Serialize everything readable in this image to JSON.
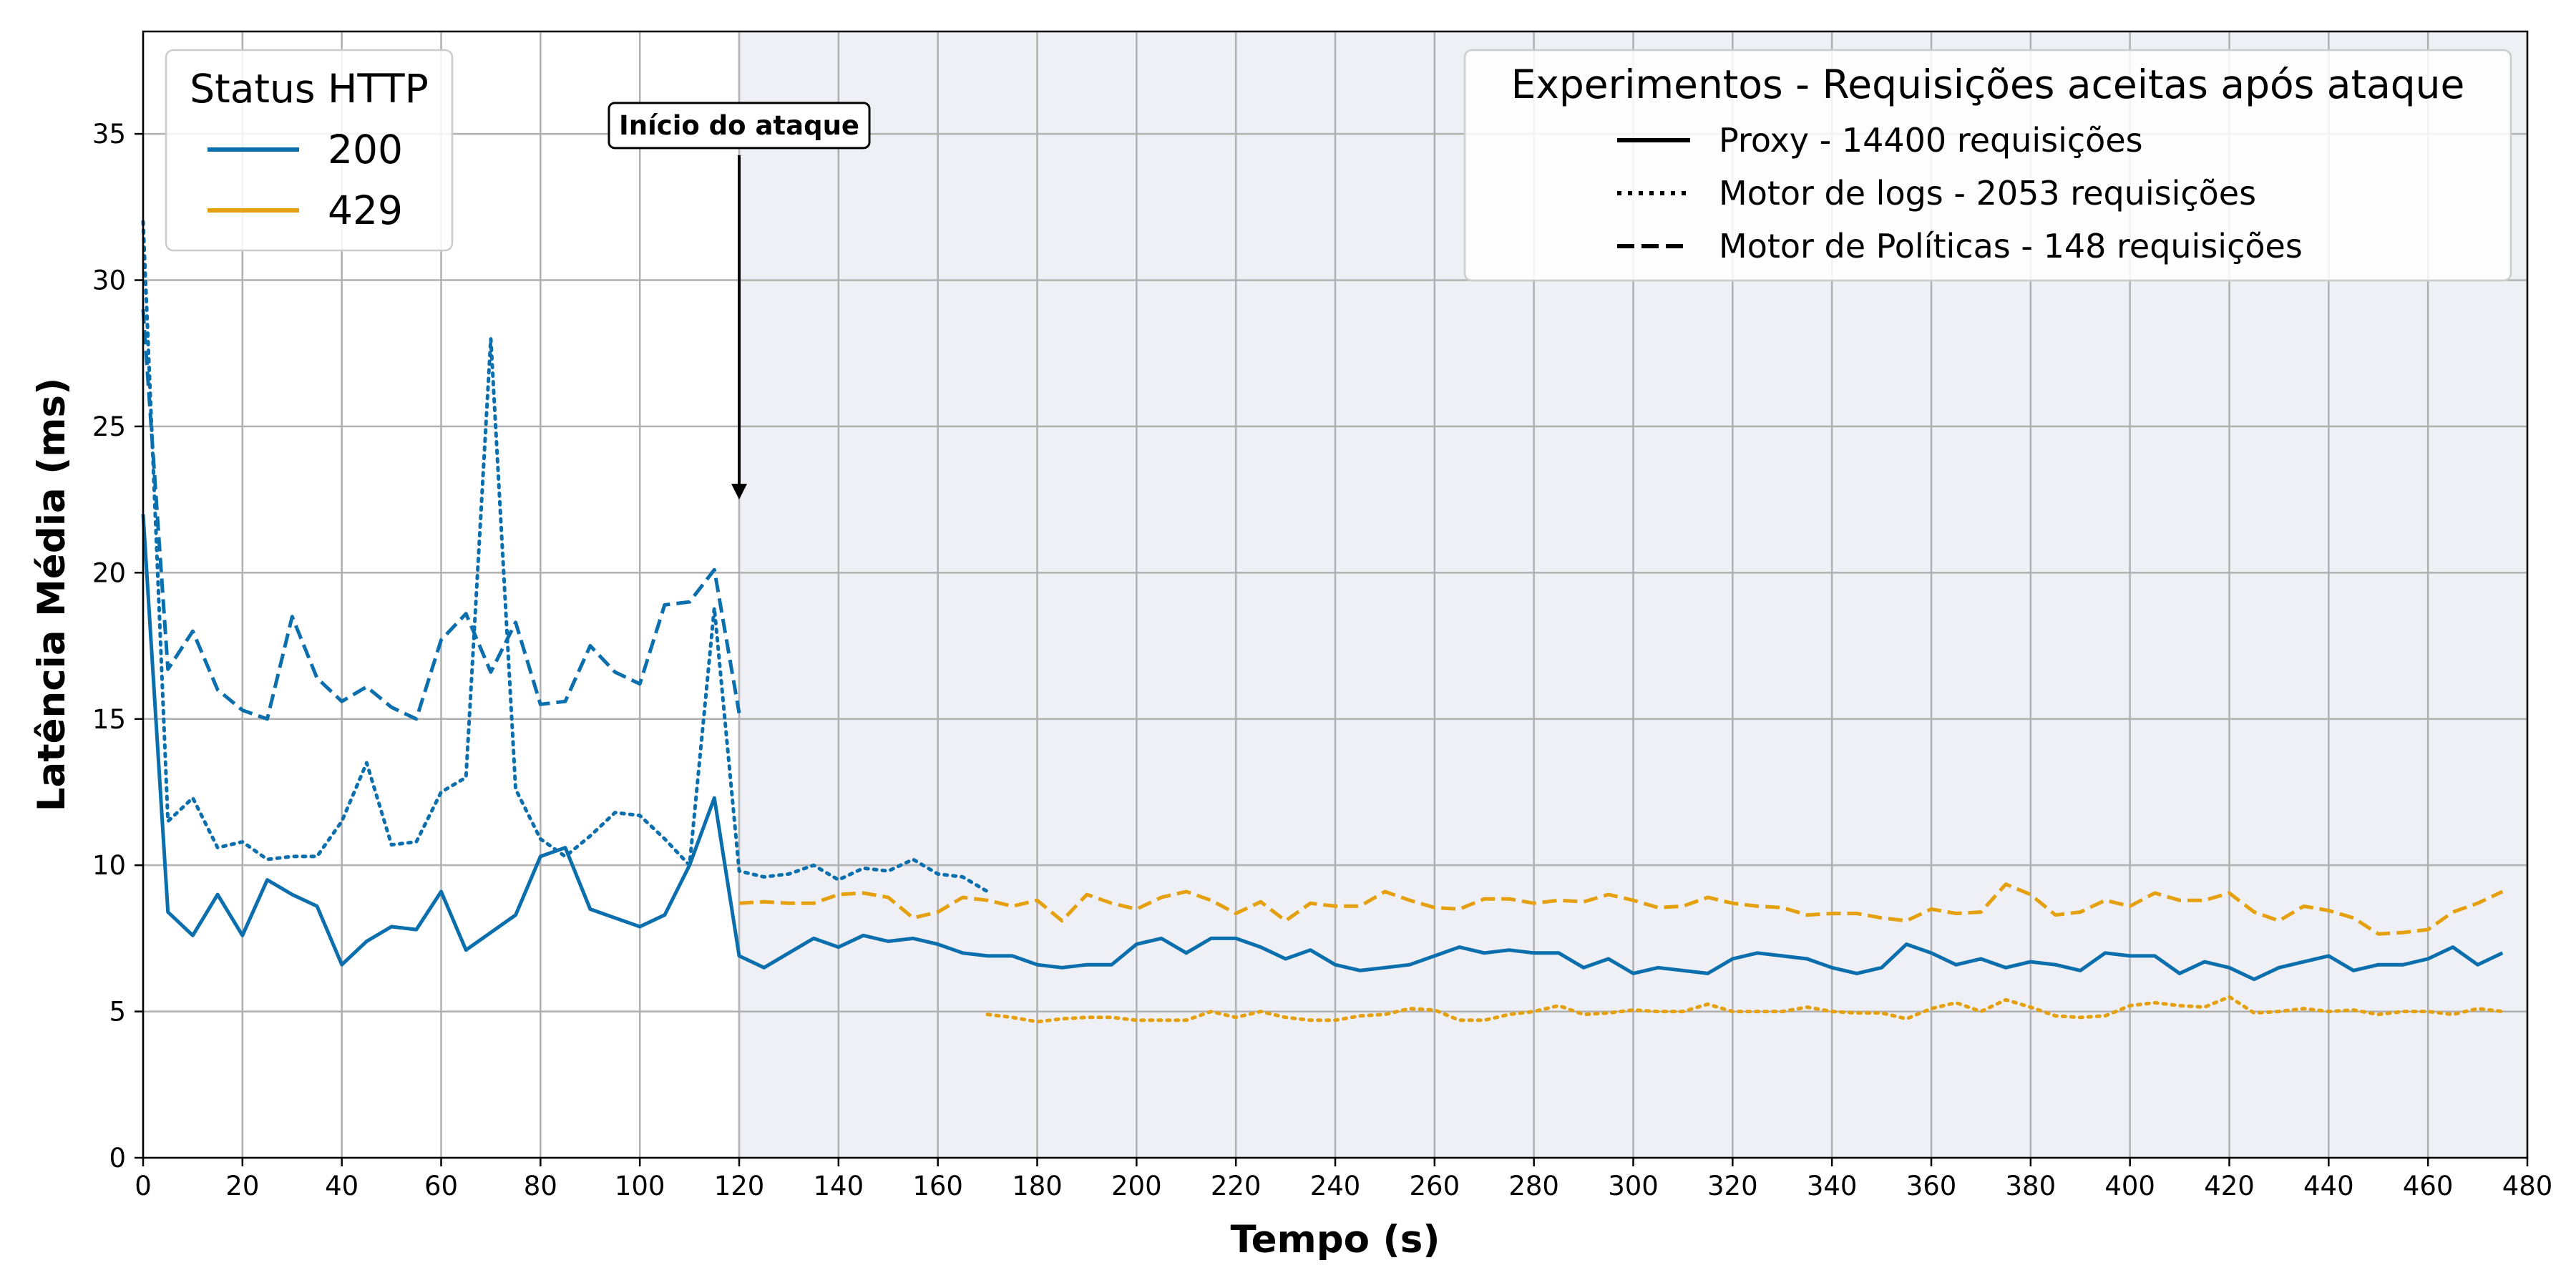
{
  "chart_data": {
    "type": "line",
    "xlabel": "Tempo (s)",
    "ylabel": "Latência Média (ms)",
    "xlim": [
      0,
      480
    ],
    "ylim": [
      0,
      38.5
    ],
    "x_ticks": [
      0,
      20,
      40,
      60,
      80,
      100,
      120,
      140,
      160,
      180,
      200,
      220,
      240,
      260,
      280,
      300,
      320,
      340,
      360,
      380,
      400,
      420,
      440,
      460,
      480
    ],
    "y_ticks": [
      0,
      5,
      10,
      15,
      20,
      25,
      30,
      35
    ],
    "grid": true,
    "shaded_region": {
      "x_start": 120,
      "x_end": 480,
      "color": "#eef0f5"
    },
    "annotation": {
      "text": "Início do ataque",
      "x": 120,
      "y_text": 35.3,
      "y_arrow_tip": 22.5
    },
    "status_legend": {
      "title": "Status HTTP",
      "placement": "upper-left",
      "entries": [
        {
          "label": "200",
          "color": "#0c6fad"
        },
        {
          "label": "429",
          "color": "#e5a00f"
        }
      ]
    },
    "experiment_legend": {
      "title": "Experimentos - Requisições aceitas após ataque",
      "placement": "upper-right",
      "entries": [
        {
          "label": "Proxy - 14400 requisições",
          "style": "solid"
        },
        {
          "label": "Motor de logs - 2053 requisições",
          "style": "dotted"
        },
        {
          "label": "Motor de Políticas - 148 requisições",
          "style": "dashed"
        }
      ]
    },
    "series": [
      {
        "experiment": "Proxy",
        "status": "200",
        "color": "#0c6fad",
        "style": "solid",
        "x": [
          0,
          5,
          10,
          15,
          20,
          25,
          30,
          35,
          40,
          45,
          50,
          55,
          60,
          65,
          70,
          75,
          80,
          85,
          90,
          95,
          100,
          105,
          110,
          115,
          120,
          125,
          130,
          135,
          140,
          145,
          150,
          155,
          160,
          165,
          170,
          175,
          180,
          185,
          190,
          195,
          200,
          205,
          210,
          215,
          220,
          225,
          230,
          235,
          240,
          245,
          250,
          255,
          260,
          265,
          270,
          275,
          280,
          285,
          290,
          295,
          300,
          305,
          310,
          315,
          320,
          325,
          330,
          335,
          340,
          345,
          350,
          355,
          360,
          365,
          370,
          375,
          380,
          385,
          390,
          395,
          400,
          405,
          410,
          415,
          420,
          425,
          430,
          435,
          440,
          445,
          450,
          455,
          460,
          465,
          470,
          475
        ],
        "y": [
          22.0,
          8.4,
          7.6,
          9.0,
          7.6,
          9.5,
          9.0,
          8.6,
          6.6,
          7.4,
          7.9,
          7.8,
          9.1,
          7.1,
          7.7,
          8.3,
          10.3,
          10.6,
          8.5,
          8.2,
          7.9,
          8.3,
          10.0,
          12.3,
          6.9,
          6.5,
          7.0,
          7.5,
          7.2,
          7.6,
          7.4,
          7.5,
          7.3,
          7.0,
          6.9,
          6.9,
          6.6,
          6.5,
          6.6,
          6.6,
          7.3,
          7.5,
          7.0,
          7.5,
          7.5,
          7.2,
          6.8,
          7.1,
          6.6,
          6.4,
          6.5,
          6.6,
          6.9,
          7.2,
          7.0,
          7.1,
          7.0,
          7.0,
          6.5,
          6.8,
          6.3,
          6.5,
          6.4,
          6.3,
          6.8,
          7.0,
          6.9,
          6.8,
          6.5,
          6.3,
          6.5,
          7.3,
          7.0,
          6.6,
          6.8,
          6.5,
          6.7,
          6.6,
          6.4,
          7.0,
          6.9,
          6.9,
          6.3,
          6.7,
          6.5,
          6.1,
          6.5,
          6.7,
          6.9,
          6.4,
          6.6,
          6.6,
          6.8,
          7.2,
          6.6,
          7.0
        ]
      },
      {
        "experiment": "Motor de logs",
        "status": "200",
        "color": "#0c6fad",
        "style": "dotted",
        "x": [
          0,
          5,
          10,
          15,
          20,
          25,
          30,
          35,
          40,
          45,
          50,
          55,
          60,
          65,
          70,
          75,
          80,
          85,
          90,
          95,
          100,
          105,
          110,
          115,
          120,
          125,
          130,
          135,
          140,
          145,
          150,
          155,
          160,
          165,
          170
        ],
        "y": [
          32.0,
          11.5,
          12.3,
          10.6,
          10.8,
          10.2,
          10.3,
          10.3,
          11.5,
          13.5,
          10.7,
          10.8,
          12.5,
          13.0,
          28.0,
          12.6,
          10.9,
          10.3,
          11.0,
          11.8,
          11.7,
          10.9,
          10.0,
          18.8,
          9.8,
          9.6,
          9.7,
          10.0,
          9.5,
          9.9,
          9.8,
          10.2,
          9.7,
          9.6,
          9.1
        ]
      },
      {
        "experiment": "Motor de Políticas",
        "status": "200",
        "color": "#0c6fad",
        "style": "dashed",
        "x": [
          0,
          5,
          10,
          15,
          20,
          25,
          30,
          35,
          40,
          45,
          50,
          55,
          60,
          65,
          70,
          75,
          80,
          85,
          90,
          95,
          100,
          105,
          110,
          115,
          120
        ],
        "y": [
          29.0,
          16.7,
          18.0,
          16.0,
          15.3,
          15.0,
          18.5,
          16.4,
          15.6,
          16.1,
          15.4,
          15.0,
          17.7,
          18.6,
          16.6,
          18.3,
          15.5,
          15.6,
          17.5,
          16.6,
          16.2,
          18.9,
          19.0,
          20.1,
          15.2
        ]
      },
      {
        "experiment": "Motor de logs",
        "status": "429",
        "color": "#e5a00f",
        "style": "dotted",
        "x": [
          170,
          175,
          180,
          185,
          190,
          195,
          200,
          205,
          210,
          215,
          220,
          225,
          230,
          235,
          240,
          245,
          250,
          255,
          260,
          265,
          270,
          275,
          280,
          285,
          290,
          295,
          300,
          305,
          310,
          315,
          320,
          325,
          330,
          335,
          340,
          345,
          350,
          355,
          360,
          365,
          370,
          375,
          380,
          385,
          390,
          395,
          400,
          405,
          410,
          415,
          420,
          425,
          430,
          435,
          440,
          445,
          450,
          455,
          460,
          465,
          470,
          475
        ],
        "y": [
          4.9,
          4.8,
          4.65,
          4.75,
          4.8,
          4.8,
          4.7,
          4.7,
          4.7,
          5.0,
          4.8,
          5.0,
          4.8,
          4.7,
          4.7,
          4.85,
          4.9,
          5.1,
          5.05,
          4.7,
          4.7,
          4.9,
          5.0,
          5.2,
          4.9,
          4.95,
          5.05,
          5.0,
          5.0,
          5.25,
          5.0,
          5.0,
          5.0,
          5.15,
          5.0,
          4.95,
          4.95,
          4.75,
          5.1,
          5.3,
          5.0,
          5.4,
          5.15,
          4.85,
          4.8,
          4.85,
          5.2,
          5.3,
          5.2,
          5.15,
          5.5,
          4.95,
          5.0,
          5.1,
          5.0,
          5.05,
          4.9,
          5.0,
          5.0,
          4.9,
          5.1,
          5.0
        ]
      },
      {
        "experiment": "Motor de Políticas",
        "status": "429",
        "color": "#e5a00f",
        "style": "dashed",
        "x": [
          120,
          125,
          130,
          135,
          140,
          145,
          150,
          155,
          160,
          165,
          170,
          175,
          180,
          185,
          190,
          195,
          200,
          205,
          210,
          215,
          220,
          225,
          230,
          235,
          240,
          245,
          250,
          255,
          260,
          265,
          270,
          275,
          280,
          285,
          290,
          295,
          300,
          305,
          310,
          315,
          320,
          325,
          330,
          335,
          340,
          345,
          350,
          355,
          360,
          365,
          370,
          375,
          380,
          385,
          390,
          395,
          400,
          405,
          410,
          415,
          420,
          425,
          430,
          435,
          440,
          445,
          450,
          455,
          460,
          465,
          470,
          475
        ],
        "y": [
          8.7,
          8.75,
          8.7,
          8.7,
          9.0,
          9.05,
          8.9,
          8.2,
          8.4,
          8.9,
          8.8,
          8.6,
          8.8,
          8.1,
          9.0,
          8.7,
          8.5,
          8.9,
          9.1,
          8.8,
          8.35,
          8.75,
          8.1,
          8.7,
          8.6,
          8.6,
          9.1,
          8.8,
          8.55,
          8.5,
          8.85,
          8.85,
          8.7,
          8.8,
          8.75,
          9.0,
          8.8,
          8.55,
          8.6,
          8.9,
          8.7,
          8.6,
          8.55,
          8.3,
          8.35,
          8.35,
          8.2,
          8.1,
          8.5,
          8.35,
          8.4,
          9.35,
          9.0,
          8.3,
          8.4,
          8.8,
          8.6,
          9.05,
          8.8,
          8.8,
          9.05,
          8.4,
          8.1,
          8.6,
          8.45,
          8.2,
          7.65,
          7.7,
          7.8,
          8.4,
          8.7,
          9.1
        ]
      }
    ]
  }
}
